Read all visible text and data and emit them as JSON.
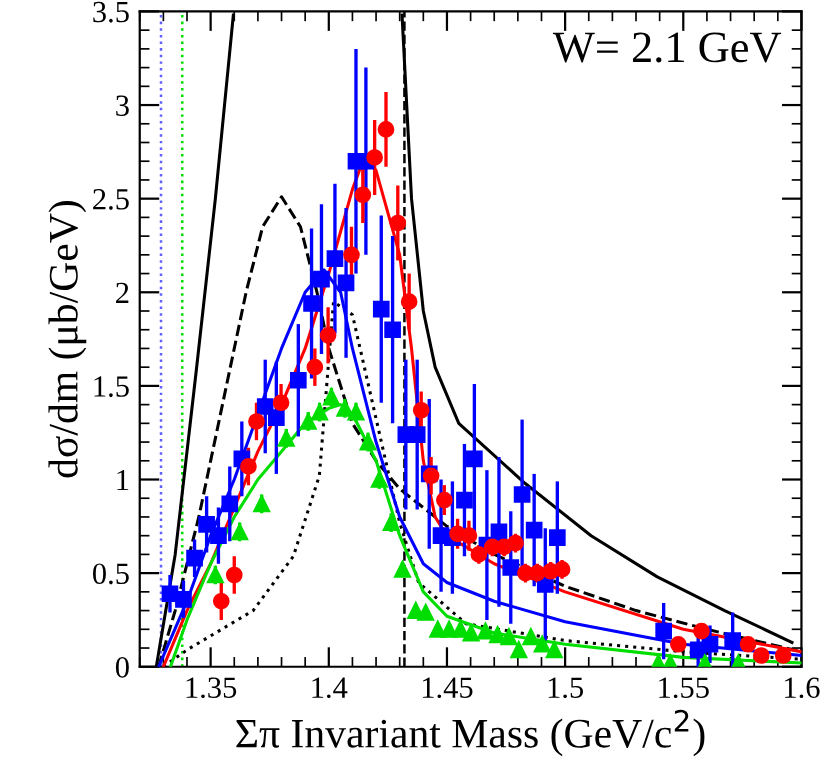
{
  "chart_data": {
    "type": "scatter",
    "xlabel": "Σπ Invariant Mass (GeV/c$^{2}$)",
    "ylabel": "dσ/dm (μb/GeV)",
    "annotations": [
      "W= 2.1 GeV"
    ],
    "xlim": [
      1.32,
      1.6
    ],
    "xticks": [
      1.35,
      1.4,
      1.45,
      1.5,
      1.55,
      1.6
    ],
    "ylim": [
      0,
      3.5
    ],
    "yticks": [
      0,
      0.5,
      1,
      1.5,
      2,
      2.5,
      3,
      3.5
    ],
    "grid": false,
    "ref_lines": [
      {
        "axis": "x",
        "value": 1.329,
        "color": "#6060ff",
        "line_style": "dotted"
      },
      {
        "axis": "x",
        "value": 1.338,
        "color": "#00dd00",
        "line_style": "dotted"
      },
      {
        "axis": "x",
        "value": 1.432,
        "color": "#000000",
        "line_style": "dashed"
      }
    ],
    "series": [
      {
        "type": "line",
        "color": "#000000",
        "line_style": "solid",
        "x": [
          1.327,
          1.335,
          1.344,
          1.352,
          1.3596,
          1.395,
          1.431,
          1.435,
          1.44,
          1.445,
          1.455,
          1.483,
          1.511,
          1.539,
          1.5675,
          1.596
        ],
        "values": [
          0,
          0.6,
          1.59,
          2.5,
          3.48,
          null,
          3.48,
          2.5,
          1.9,
          1.6,
          1.3,
          0.98,
          0.7,
          0.48,
          0.3,
          0.13
        ]
      },
      {
        "type": "line",
        "color": "#000000",
        "line_style": "dashed",
        "x": [
          1.328,
          1.335,
          1.345,
          1.355,
          1.365,
          1.372,
          1.38,
          1.388,
          1.395,
          1.4,
          1.41,
          1.42,
          1.43,
          1.44,
          1.45,
          1.47,
          1.5,
          1.53,
          1.56,
          1.6
        ],
        "values": [
          0,
          0.3,
          0.8,
          1.4,
          2.0,
          2.35,
          2.51,
          2.35,
          2.0,
          1.7,
          1.3,
          1.1,
          0.95,
          0.85,
          0.75,
          0.6,
          0.43,
          0.3,
          0.2,
          0.08
        ]
      },
      {
        "type": "line",
        "color": "#000000",
        "line_style": "dotted",
        "x": [
          1.33,
          1.34,
          1.368,
          1.385,
          1.396,
          1.402,
          1.41,
          1.43,
          1.438,
          1.458,
          1.5,
          1.55,
          1.6
        ],
        "values": [
          0,
          0.09,
          0.3,
          0.59,
          1.02,
          1.95,
          1.88,
          0.77,
          0.45,
          0.23,
          0.14,
          0.08,
          0.04
        ]
      },
      {
        "type": "line",
        "color": "#0000ff",
        "line_style": "solid",
        "x": [
          1.328,
          1.34,
          1.35,
          1.36,
          1.37,
          1.38,
          1.39,
          1.398,
          1.405,
          1.41,
          1.42,
          1.43,
          1.44,
          1.45,
          1.47,
          1.5,
          1.55,
          1.6
        ],
        "values": [
          0,
          0.35,
          0.7,
          1.0,
          1.35,
          1.7,
          2.0,
          2.12,
          2.0,
          1.7,
          1.2,
          0.8,
          0.55,
          0.45,
          0.35,
          0.24,
          0.12,
          0.06
        ]
      },
      {
        "type": "line",
        "color": "#ff0000",
        "line_style": "solid",
        "x": [
          1.33,
          1.34,
          1.35,
          1.36,
          1.37,
          1.38,
          1.39,
          1.4,
          1.41,
          1.415,
          1.42,
          1.43,
          1.435,
          1.44,
          1.445,
          1.45,
          1.47,
          1.5,
          1.55,
          1.6
        ],
        "values": [
          0,
          0.3,
          0.55,
          0.85,
          1.15,
          1.4,
          1.7,
          2.1,
          2.55,
          2.72,
          2.65,
          2.2,
          1.7,
          1.1,
          0.8,
          0.7,
          0.55,
          0.4,
          0.2,
          0.08
        ]
      },
      {
        "type": "line",
        "color": "#00dd00",
        "line_style": "solid",
        "x": [
          1.333,
          1.34,
          1.35,
          1.36,
          1.37,
          1.38,
          1.39,
          1.4,
          1.405,
          1.41,
          1.42,
          1.43,
          1.44,
          1.45,
          1.47,
          1.5,
          1.55,
          1.6
        ],
        "values": [
          0,
          0.25,
          0.55,
          0.8,
          1.0,
          1.15,
          1.3,
          1.38,
          1.4,
          1.35,
          1.1,
          0.7,
          0.4,
          0.27,
          0.18,
          0.12,
          0.05,
          0.02
        ]
      },
      {
        "color": "#0000ff",
        "marker": "square",
        "x": [
          1.3328,
          1.3385,
          1.3432,
          1.3483,
          1.3533,
          1.3581,
          1.3632,
          1.3731,
          1.3778,
          1.3871,
          1.3927,
          1.3969,
          1.4026,
          1.4073,
          1.4115,
          1.4157,
          1.4222,
          1.427,
          1.4326,
          1.4374,
          1.4425,
          1.4475,
          1.4523,
          1.4574,
          1.4616,
          1.4669,
          1.472,
          1.477,
          1.4818,
          1.4869,
          1.4916,
          1.4967,
          1.5417,
          1.5563,
          1.5613,
          1.5709
        ],
        "values": [
          0.39,
          0.36,
          0.58,
          0.76,
          0.7,
          0.87,
          1.11,
          1.39,
          1.33,
          1.53,
          1.94,
          2.07,
          2.18,
          2.05,
          2.7,
          2.7,
          1.91,
          1.8,
          1.24,
          1.24,
          1.03,
          0.7,
          0.69,
          0.89,
          1.11,
          0.65,
          0.72,
          0.53,
          0.92,
          0.73,
          0.44,
          0.69,
          0.19,
          0.09,
          0.12,
          0.14
        ],
        "errors": [
          0.1,
          0.1,
          0.1,
          0.15,
          0.15,
          0.2,
          0.2,
          0.25,
          0.3,
          0.3,
          0.4,
          0.4,
          0.4,
          0.4,
          0.6,
          0.5,
          0.5,
          0.5,
          0.4,
          0.4,
          0.4,
          0.3,
          0.3,
          0.3,
          0.4,
          0.4,
          0.4,
          0.3,
          0.4,
          0.3,
          0.3,
          0.3,
          0.15,
          0.1,
          0.1,
          0.15
        ]
      },
      {
        "color": "#ff0000",
        "marker": "circle",
        "x": [
          1.3545,
          1.36,
          1.366,
          1.3694,
          1.3798,
          1.3941,
          1.3997,
          1.4096,
          1.4144,
          1.4194,
          1.4242,
          1.4292,
          1.434,
          1.4391,
          1.4433,
          1.4489,
          1.4545,
          1.4593,
          1.4635,
          1.4692,
          1.4742,
          1.479,
          1.4832,
          1.4882,
          1.4939,
          1.4987,
          1.5479,
          1.5577,
          1.5774,
          1.583,
          1.5923
        ],
        "values": [
          0.35,
          0.49,
          1.07,
          1.31,
          1.41,
          1.6,
          1.77,
          2.2,
          2.52,
          2.72,
          2.87,
          2.37,
          1.95,
          1.37,
          1.02,
          0.89,
          0.71,
          0.7,
          0.6,
          0.64,
          0.64,
          0.66,
          0.5,
          0.5,
          0.51,
          0.52,
          0.12,
          0.19,
          0.12,
          0.06,
          0.06
        ],
        "errors": [
          0.1,
          0.1,
          0.1,
          0.1,
          0.1,
          0.1,
          0.15,
          0.15,
          0.15,
          0.2,
          0.2,
          0.2,
          0.15,
          0.1,
          0.1,
          0.08,
          0.08,
          0.08,
          0.05,
          0.05,
          0.05,
          0.05,
          0.05,
          0.05,
          0.05,
          0.05,
          0.03,
          0.03,
          0.03,
          0.03,
          0.03
        ]
      },
      {
        "color": "#00dd00",
        "marker": "triangle",
        "x": [
          1.352,
          1.3623,
          1.3716,
          1.382,
          1.3913,
          1.3961,
          1.4011,
          1.4068,
          1.4115,
          1.4166,
          1.4214,
          1.4264,
          1.4312,
          1.4368,
          1.441,
          1.4461,
          1.4509,
          1.4557,
          1.4602,
          1.4663,
          1.4714,
          1.4762,
          1.4804,
          1.4855,
          1.4903,
          1.4954,
          1.5394,
          1.5445,
          1.5591,
          1.5733
        ],
        "values": [
          0.49,
          0.72,
          0.87,
          1.22,
          1.31,
          1.36,
          1.44,
          1.38,
          1.36,
          1.2,
          1.0,
          0.77,
          0.52,
          0.3,
          0.29,
          0.2,
          0.2,
          0.2,
          0.18,
          0.19,
          0.17,
          0.16,
          0.09,
          0.16,
          0.12,
          0.09,
          0.02,
          0.02,
          0.02,
          0.02
        ],
        "errors": [
          0.05,
          0.05,
          0.05,
          0.05,
          0.05,
          0.05,
          0.05,
          0.05,
          0.05,
          0.05,
          0.05,
          0.05,
          0.04,
          0.03,
          0.03,
          0.03,
          0.03,
          0.03,
          0.03,
          0.03,
          0.03,
          0.03,
          0.03,
          0.03,
          0.03,
          0.03,
          null,
          null,
          null,
          null
        ]
      }
    ]
  }
}
